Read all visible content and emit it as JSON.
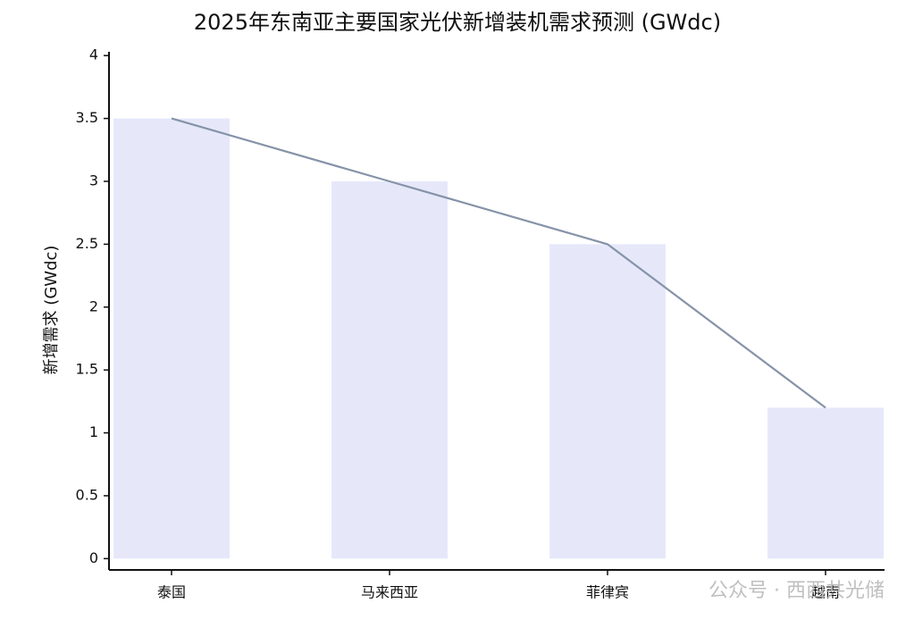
{
  "chart_data": {
    "type": "bar",
    "title": "2025年东南亚主要国家光伏新增装机需求预测 (GWdc)",
    "y_label": "新增需求 (GWdc)",
    "categories": [
      "泰国",
      "马来西亚",
      "菲律宾",
      "越南"
    ],
    "values": [
      3.5,
      3,
      2.5,
      1.2
    ],
    "color": "#e6e8fa",
    "line_overlay": true,
    "line_color": "#8593a8",
    "ylim": [
      -0.09,
      4.03
    ],
    "yticks": [
      0,
      0.5,
      1,
      1.5,
      2,
      2.5,
      3,
      3.5,
      4
    ],
    "grid": false,
    "watermark": "公众号 · 西西共光储"
  }
}
